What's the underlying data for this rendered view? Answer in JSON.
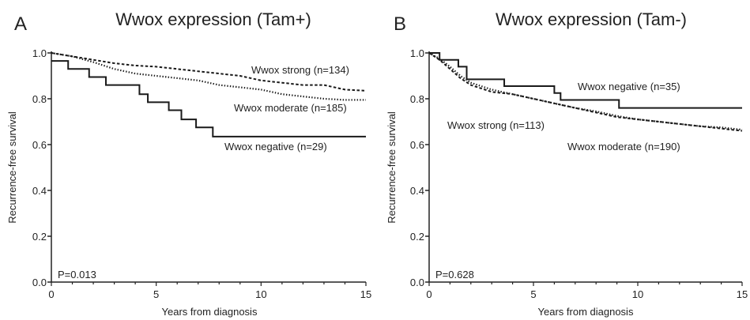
{
  "chart_data": [
    {
      "type": "line",
      "panel_label": "A",
      "title": "Wwox expression (Tam+)",
      "xlabel": "Years from diagnosis",
      "ylabel": "Recurrence-free survival",
      "xlim": [
        0,
        15
      ],
      "ylim": [
        0.0,
        1.0
      ],
      "xticks": [
        "0",
        "5",
        "10",
        "15"
      ],
      "yticks": [
        "0.0",
        "0.2",
        "0.4",
        "0.6",
        "0.8",
        "1.0"
      ],
      "grid": false,
      "annotation": "P=0.013",
      "series": [
        {
          "name": "Wwox strong (n=134)",
          "style": "dashed",
          "x": [
            0,
            1,
            2,
            3,
            4,
            5,
            6,
            7,
            8,
            9,
            10,
            11,
            12,
            13,
            14,
            15
          ],
          "y": [
            1.0,
            0.985,
            0.97,
            0.955,
            0.945,
            0.94,
            0.93,
            0.92,
            0.91,
            0.9,
            0.88,
            0.87,
            0.86,
            0.86,
            0.84,
            0.835
          ]
        },
        {
          "name": "Wwox moderate (n=185)",
          "style": "dotted",
          "x": [
            0,
            1,
            2,
            3,
            4,
            5,
            6,
            7,
            8,
            9,
            10,
            11,
            12,
            13,
            14,
            15
          ],
          "y": [
            1.0,
            0.985,
            0.96,
            0.93,
            0.91,
            0.9,
            0.89,
            0.88,
            0.86,
            0.85,
            0.84,
            0.82,
            0.81,
            0.8,
            0.795,
            0.795
          ]
        },
        {
          "name": "Wwox negative (n=29)",
          "style": "solid",
          "step": true,
          "x": [
            0,
            0.8,
            1.8,
            2.6,
            4.2,
            4.6,
            5.6,
            6.2,
            6.9,
            7.7,
            15
          ],
          "y": [
            0.965,
            0.93,
            0.895,
            0.86,
            0.82,
            0.785,
            0.75,
            0.71,
            0.675,
            0.635,
            0.635
          ]
        }
      ]
    },
    {
      "type": "line",
      "panel_label": "B",
      "title": "Wwox expression (Tam-)",
      "xlabel": "Years from diagnosis",
      "ylabel": "Recurrence-free survival",
      "xlim": [
        0,
        15
      ],
      "ylim": [
        0.0,
        1.0
      ],
      "xticks": [
        "0",
        "5",
        "10",
        "15"
      ],
      "yticks": [
        "0.0",
        "0.2",
        "0.4",
        "0.6",
        "0.8",
        "1.0"
      ],
      "grid": false,
      "annotation": "P=0.628",
      "series": [
        {
          "name": "Wwox negative (n=35)",
          "style": "solid",
          "step": true,
          "x": [
            0,
            0.5,
            1.4,
            1.8,
            3.6,
            6.0,
            6.3,
            9.1,
            15
          ],
          "y": [
            1.0,
            0.97,
            0.94,
            0.885,
            0.855,
            0.825,
            0.795,
            0.76,
            0.76
          ]
        },
        {
          "name": "Wwox strong (n=113)",
          "style": "dashed",
          "x": [
            0,
            0.5,
            1,
            1.5,
            2,
            3,
            4,
            5,
            6,
            7,
            8,
            9,
            10,
            11,
            12,
            13,
            14,
            15
          ],
          "y": [
            1.0,
            0.97,
            0.93,
            0.89,
            0.86,
            0.83,
            0.82,
            0.8,
            0.78,
            0.76,
            0.74,
            0.72,
            0.71,
            0.7,
            0.69,
            0.68,
            0.67,
            0.66
          ]
        },
        {
          "name": "Wwox moderate (n=190)",
          "style": "dotted",
          "x": [
            0,
            0.5,
            1,
            1.5,
            2,
            3,
            4,
            5,
            6,
            7,
            8,
            9,
            10,
            11,
            12,
            13,
            14,
            15
          ],
          "y": [
            1.0,
            0.975,
            0.94,
            0.9,
            0.87,
            0.84,
            0.82,
            0.8,
            0.78,
            0.76,
            0.745,
            0.725,
            0.71,
            0.7,
            0.69,
            0.68,
            0.675,
            0.665
          ]
        }
      ]
    }
  ]
}
